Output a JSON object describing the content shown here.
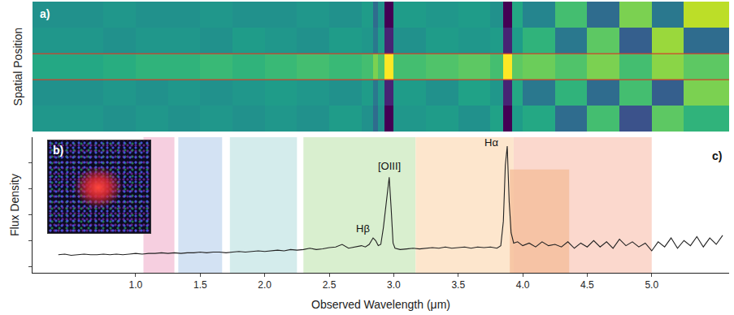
{
  "chart_data": [
    {
      "type": "heatmap",
      "panel": "a)",
      "y_label": "Spatial Position",
      "x_edges": [
        0.2,
        0.75,
        1.0,
        1.25,
        1.5,
        1.75,
        2.0,
        2.25,
        2.5,
        2.75,
        2.84,
        2.88,
        2.93,
        3.0,
        3.25,
        3.5,
        3.75,
        3.85,
        3.92,
        4.0,
        4.25,
        4.5,
        4.75,
        5.0,
        5.25,
        5.6
      ],
      "y_edges": [
        -0.5,
        0.5,
        1.5,
        2.5,
        3.5,
        4.5
      ],
      "cells": [
        [
          0.05,
          0.0,
          0.05,
          0.0,
          0.05,
          0.0,
          0.05,
          0.0,
          0.1,
          0.0,
          -0.3,
          0.0,
          -1,
          0.05,
          0.1,
          0.0,
          0.15,
          -1,
          0.1,
          0.2,
          -0.3,
          0.4,
          -0.5,
          0.5,
          0.3
        ],
        [
          0.0,
          0.05,
          0.0,
          0.05,
          0.0,
          0.05,
          0.1,
          0.05,
          0.0,
          0.1,
          -0.2,
          0.05,
          -0.8,
          0.1,
          0.0,
          0.15,
          0.05,
          -0.8,
          0.2,
          -0.2,
          0.3,
          -0.3,
          0.4,
          -0.4,
          0.6
        ],
        [
          0.2,
          0.25,
          0.3,
          0.3,
          0.35,
          0.3,
          0.35,
          0.4,
          0.35,
          0.4,
          0.6,
          0.45,
          1,
          0.4,
          0.45,
          0.5,
          0.4,
          1,
          0.5,
          0.55,
          0.45,
          0.6,
          0.4,
          0.65,
          0.5
        ],
        [
          0.05,
          0.0,
          0.05,
          0.05,
          0.0,
          0.1,
          0.05,
          0.0,
          0.1,
          0.05,
          -0.2,
          0.1,
          -0.8,
          0.0,
          0.1,
          0.05,
          0.1,
          -0.8,
          0.1,
          0.3,
          -0.2,
          0.5,
          -0.4,
          0.7,
          -0.3
        ],
        [
          0.0,
          0.05,
          0.0,
          0.0,
          0.05,
          0.0,
          0.0,
          0.05,
          0.0,
          0.1,
          -0.3,
          0.0,
          -1,
          0.1,
          0.05,
          0.1,
          0.0,
          -1,
          0.2,
          -0.1,
          0.4,
          -0.3,
          0.6,
          -0.2,
          0.8
        ]
      ],
      "zlim": [
        -1,
        1
      ],
      "color": "Viridis",
      "ylim": [
        -0.5,
        4.5
      ],
      "yticks": [],
      "aperture": [
        1.5,
        2.5
      ],
      "tick_labels": false,
      "grid": false
    },
    {
      "type": "image",
      "panel": "b)"
    },
    {
      "type": "line",
      "panel": "c)",
      "x_label": "Observed Wavelength (μm)",
      "y_label": "Flux Density",
      "color": "#222222",
      "x": [
        0.4,
        0.45,
        0.5,
        0.55,
        0.6,
        0.65,
        0.7,
        0.75,
        0.8,
        0.85,
        0.9,
        0.95,
        1.0,
        1.05,
        1.1,
        1.15,
        1.2,
        1.25,
        1.3,
        1.35,
        1.4,
        1.45,
        1.5,
        1.55,
        1.6,
        1.65,
        1.7,
        1.75,
        1.8,
        1.85,
        1.9,
        1.95,
        2.0,
        2.05,
        2.1,
        2.15,
        2.2,
        2.25,
        2.3,
        2.35,
        2.4,
        2.45,
        2.5,
        2.55,
        2.6,
        2.65,
        2.7,
        2.75,
        2.78,
        2.81,
        2.84,
        2.86,
        2.88,
        2.9,
        2.92,
        2.935,
        2.95,
        2.965,
        2.98,
        2.995,
        3.01,
        3.05,
        3.1,
        3.15,
        3.2,
        3.25,
        3.3,
        3.35,
        3.4,
        3.45,
        3.5,
        3.55,
        3.6,
        3.65,
        3.7,
        3.75,
        3.8,
        3.83,
        3.85,
        3.865,
        3.88,
        3.895,
        3.91,
        3.93,
        3.96,
        4.0,
        4.05,
        4.1,
        4.15,
        4.2,
        4.25,
        4.3,
        4.35,
        4.4,
        4.45,
        4.5,
        4.55,
        4.6,
        4.65,
        4.7,
        4.75,
        4.8,
        4.85,
        4.9,
        4.95,
        5.0,
        5.05,
        5.1,
        5.15,
        5.2,
        5.25,
        5.3,
        5.35,
        5.4,
        5.45,
        5.5,
        5.55
      ],
      "values": [
        0.9,
        0.95,
        0.85,
        0.9,
        0.95,
        0.9,
        0.9,
        0.95,
        0.9,
        0.95,
        0.9,
        0.95,
        1.0,
        0.95,
        1.0,
        1.0,
        1.05,
        1.0,
        1.05,
        1.0,
        1.05,
        1.05,
        1.1,
        1.05,
        1.1,
        1.1,
        1.05,
        1.1,
        1.15,
        1.1,
        1.15,
        1.2,
        1.15,
        1.2,
        1.25,
        1.2,
        1.3,
        1.25,
        1.3,
        1.4,
        1.3,
        1.35,
        1.45,
        1.5,
        1.7,
        1.4,
        1.5,
        1.6,
        1.5,
        1.7,
        2.2,
        2.0,
        1.6,
        1.7,
        3.0,
        4.2,
        5.6,
        6.9,
        4.5,
        1.8,
        1.4,
        1.3,
        1.35,
        1.4,
        1.35,
        1.4,
        1.45,
        1.4,
        1.5,
        1.4,
        1.45,
        1.5,
        1.4,
        1.5,
        1.45,
        1.5,
        1.4,
        1.6,
        3.5,
        7.8,
        9.3,
        5.0,
        2.6,
        1.8,
        1.9,
        1.6,
        1.8,
        1.5,
        1.9,
        1.6,
        1.7,
        1.5,
        1.9,
        1.4,
        1.8,
        1.5,
        2.0,
        1.5,
        1.9,
        1.4,
        2.1,
        1.6,
        1.9,
        1.5,
        1.8,
        1.2,
        1.9,
        1.5,
        2.2,
        1.4,
        2.0,
        1.6,
        2.3,
        1.5,
        2.2,
        1.7,
        2.4
      ],
      "xlim": [
        0.2,
        5.6
      ],
      "xticks": [
        {
          "value": 1,
          "label": "1.0"
        },
        {
          "value": 1.5,
          "label": "1.5"
        },
        {
          "value": 2,
          "label": "2.0"
        },
        {
          "value": 2.5,
          "label": "2.5"
        },
        {
          "value": 3,
          "label": "3.0"
        },
        {
          "value": 3.5,
          "label": "3.5"
        },
        {
          "value": 4,
          "label": "4.0"
        },
        {
          "value": 4.5,
          "label": "4.5"
        },
        {
          "value": 5,
          "label": "5.0"
        }
      ],
      "ylim": [
        -0.5,
        10
      ],
      "yticks": [
        0,
        2,
        4,
        6,
        8
      ],
      "tick_labels": "x",
      "grid": false,
      "bands": [
        {
          "x0": 1.06,
          "x1": 1.3,
          "color": "#f6cfe0"
        },
        {
          "x0": 1.33,
          "x1": 1.67,
          "color": "#d3e2f3"
        },
        {
          "x0": 1.73,
          "x1": 2.25,
          "color": "#d4ecec"
        },
        {
          "x0": 2.3,
          "x1": 3.17,
          "color": "#d9efcf"
        },
        {
          "x0": 3.17,
          "x1": 3.93,
          "color": "#fde6cd"
        },
        {
          "x0": 3.93,
          "x1": 5.0,
          "color": "#fbd8cd"
        },
        {
          "x0": 3.9,
          "x1": 4.36,
          "color": "#f4bc97",
          "y1": 7.5
        }
      ],
      "annotations": [
        {
          "text": "[OIII]",
          "x": 2.965,
          "y": 7.2
        },
        {
          "text": "Hβ",
          "x": 2.76,
          "y": 2.3
        },
        {
          "text": "Hα",
          "x": 3.76,
          "y": 9.0
        }
      ]
    }
  ]
}
